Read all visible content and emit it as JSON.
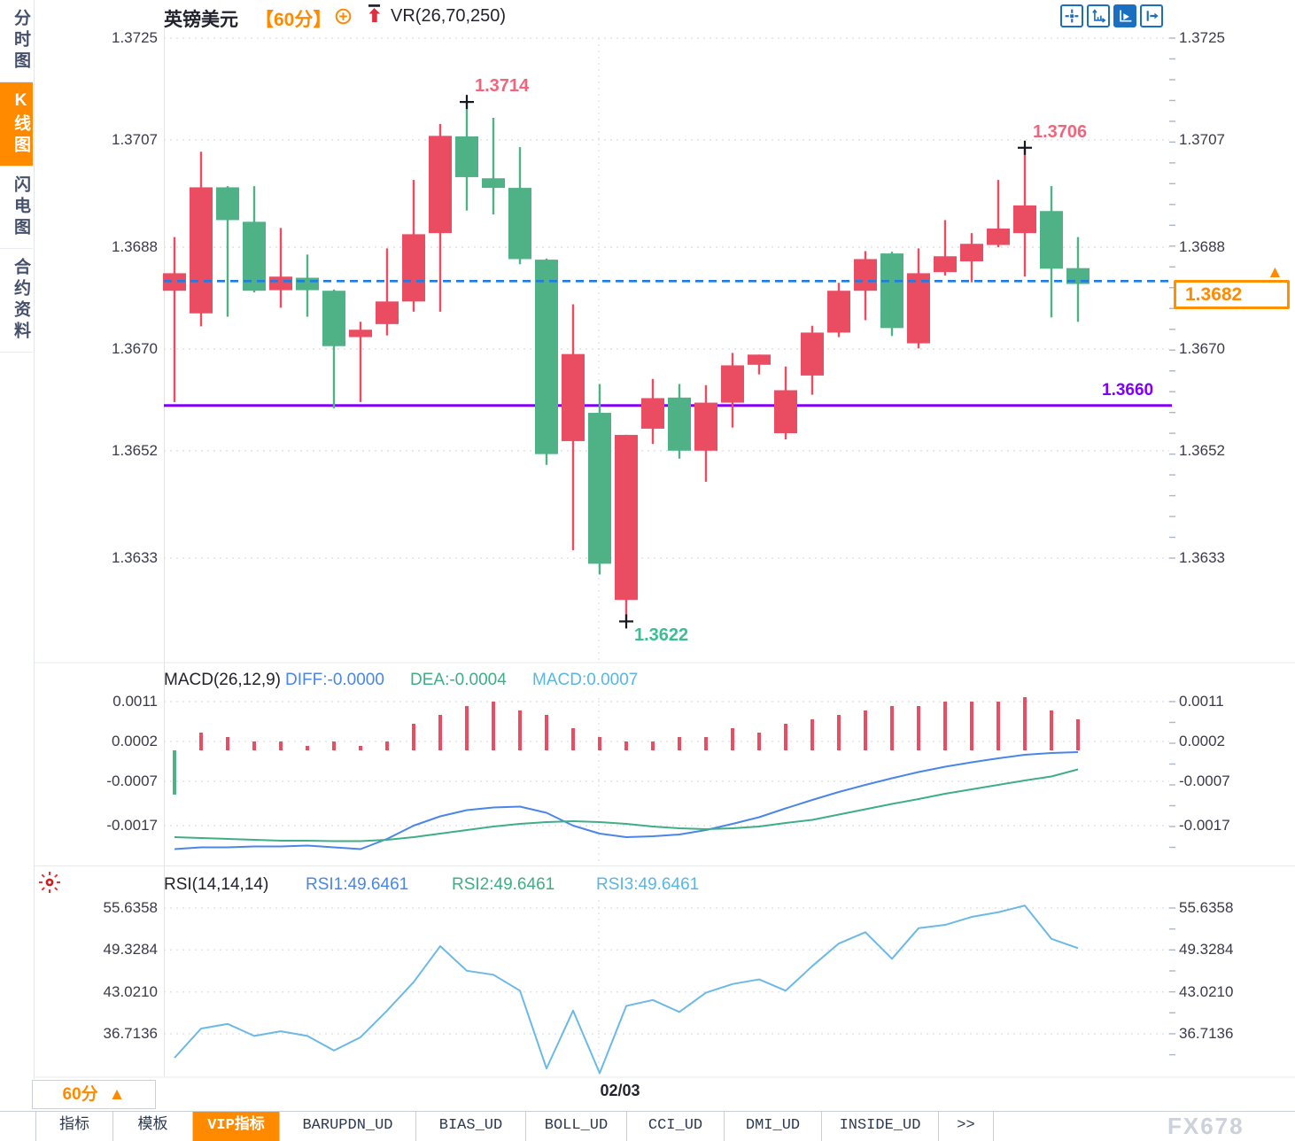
{
  "header": {
    "symbol": "英镑美元",
    "timeframe": "【60分】",
    "indicator": "VR(26,70,250)"
  },
  "sidebar": {
    "items": [
      {
        "id": "intraday-chart",
        "label": "分时图",
        "active": false
      },
      {
        "id": "kline-chart",
        "label": "K线图",
        "active": true
      },
      {
        "id": "lightning-chart",
        "label": "闪电图",
        "active": false
      },
      {
        "id": "contract-info",
        "label": "合约资料",
        "active": false
      }
    ]
  },
  "icons": {
    "toolbar": [
      {
        "id": "crosshair",
        "active": false
      },
      {
        "id": "axis-range",
        "active": false
      },
      {
        "id": "axis-play",
        "active": true
      },
      {
        "id": "pan-right",
        "active": false
      }
    ],
    "timeframe_add": "circle-plus",
    "header_trend": "red-up-arrow",
    "rsi_live": "red-sunburst"
  },
  "colors": {
    "up": "#ea4c62",
    "down": "#4fb286",
    "accent_orange": "#ff8a00",
    "dash_blue": "#1a7ee6",
    "purple": "#8000ff",
    "diff_blue": "#4a86e8",
    "dea_green": "#3fae85",
    "macd_cyan": "#58b6e4",
    "rsi_line": "#6cb9e6",
    "annotation_high": "#f2647c",
    "annotation_low": "#3cbd92"
  },
  "macd": {
    "title": "MACD(26,12,9)",
    "diff_label": "DIFF:-0.0000",
    "dea_label": "DEA:-0.0004",
    "macd_label": "MACD:0.0007"
  },
  "rsi": {
    "title": "RSI(14,14,14)",
    "rsi1_label": "RSI1:49.6461",
    "rsi2_label": "RSI2:49.6461",
    "rsi3_label": "RSI3:49.6461"
  },
  "xaxis": {
    "date_label": "02/03"
  },
  "price_tag": {
    "label": "1.3682",
    "arrow": "▲"
  },
  "footer": {
    "timeframe_button": {
      "label": "60分",
      "arrow": "▲"
    },
    "tabs": [
      {
        "id": "indicators",
        "label": "指标",
        "active": false
      },
      {
        "id": "templates",
        "label": "模板",
        "active": false
      },
      {
        "id": "vip-indicators",
        "label": "VIP指标",
        "active": true
      },
      {
        "id": "barupdn-ud",
        "label": "BARUPDN_UD",
        "active": false
      },
      {
        "id": "bias-ud",
        "label": "BIAS_UD",
        "active": false
      },
      {
        "id": "boll-ud",
        "label": "BOLL_UD",
        "active": false
      },
      {
        "id": "cci-ud",
        "label": "CCI_UD",
        "active": false
      },
      {
        "id": "dmi-ud",
        "label": "DMI_UD",
        "active": false
      },
      {
        "id": "inside-ud",
        "label": "INSIDE_UD",
        "active": false
      },
      {
        "id": "more",
        "label": ">>",
        "active": false
      }
    ],
    "watermark": "FX678"
  },
  "chart_data": [
    {
      "type": "candlestick",
      "title": "英镑美元 【60分】 VR(26,70,250)",
      "timeframe": "60分",
      "y_ticks": [
        "1.3725",
        "1.3707",
        "1.3688",
        "1.3670",
        "1.3652",
        "1.3633"
      ],
      "ylim": [
        1.3615,
        1.3727
      ],
      "x_tick_labels": [
        "02/03"
      ],
      "x_tick_index": 16,
      "grid": true,
      "candles": [
        [
          1.36803,
          1.36898,
          1.36606,
          1.36834
        ],
        [
          1.36763,
          1.37049,
          1.3674,
          1.36986
        ],
        [
          1.36986,
          1.36988,
          1.36757,
          1.36928
        ],
        [
          1.36925,
          1.36988,
          1.368,
          1.36803
        ],
        [
          1.36804,
          1.36914,
          1.36773,
          1.36828
        ],
        [
          1.36826,
          1.36867,
          1.36757,
          1.36804
        ],
        [
          1.36803,
          1.36805,
          1.36595,
          1.36705
        ],
        [
          1.36721,
          1.36748,
          1.36606,
          1.36734
        ],
        [
          1.36744,
          1.36878,
          1.36724,
          1.36784
        ],
        [
          1.36784,
          1.36999,
          1.36766,
          1.36903
        ],
        [
          1.36905,
          1.37098,
          1.36766,
          1.37077
        ],
        [
          1.37076,
          1.37137,
          1.36945,
          1.37004
        ],
        [
          1.37002,
          1.37109,
          1.36938,
          1.36985
        ],
        [
          1.36985,
          1.37057,
          1.3685,
          1.36859
        ],
        [
          1.36858,
          1.3686,
          1.36495,
          1.36514
        ],
        [
          1.36537,
          1.36779,
          1.36344,
          1.36691
        ],
        [
          1.36587,
          1.36638,
          1.36301,
          1.3632
        ],
        [
          1.36256,
          1.36548,
          1.36218,
          1.36548
        ],
        [
          1.36559,
          1.36647,
          1.36532,
          1.36613
        ],
        [
          1.36614,
          1.36638,
          1.36506,
          1.3652
        ],
        [
          1.3652,
          1.36636,
          1.36465,
          1.36605
        ],
        [
          1.36605,
          1.36693,
          1.36561,
          1.36671
        ],
        [
          1.36672,
          1.3669,
          1.36655,
          1.3669
        ],
        [
          1.36551,
          1.36669,
          1.3654,
          1.36627
        ],
        [
          1.36653,
          1.36741,
          1.36619,
          1.36729
        ],
        [
          1.36729,
          1.36817,
          1.36721,
          1.36803
        ],
        [
          1.36803,
          1.36873,
          1.36751,
          1.36859
        ],
        [
          1.36869,
          1.36872,
          1.36723,
          1.36737
        ],
        [
          1.3671,
          1.36878,
          1.36701,
          1.36834
        ],
        [
          1.36836,
          1.36928,
          1.3683,
          1.36864
        ],
        [
          1.36855,
          1.36905,
          1.36818,
          1.36886
        ],
        [
          1.36884,
          1.36999,
          1.3688,
          1.36913
        ],
        [
          1.36905,
          1.37056,
          1.36828,
          1.36954
        ],
        [
          1.36944,
          1.36988,
          1.36756,
          1.36842
        ],
        [
          1.36843,
          1.36898,
          1.36748,
          1.36815
        ]
      ],
      "annotations": [
        {
          "label": "1.3714",
          "index": 11,
          "pos": "high",
          "color": "#f2647c"
        },
        {
          "label": "1.3706",
          "index": 32,
          "pos": "high",
          "color": "#f2647c"
        },
        {
          "label": "1.3622",
          "index": 17,
          "pos": "low",
          "color": "#3cbd92"
        }
      ],
      "hlines": [
        {
          "value": 1.3682,
          "label": "1.3682",
          "style": "dashed",
          "color": "#1a7ee6",
          "tagged": true
        },
        {
          "value": 1.366,
          "label": "1.3660",
          "style": "solid",
          "color": "#8000ff",
          "tagged": false
        }
      ]
    },
    {
      "type": "bar",
      "name": "MACD",
      "title": "MACD(26,12,9)",
      "legend": [
        "DIFF:-0.0000",
        "DEA:-0.0004",
        "MACD:0.0007"
      ],
      "y_ticks": [
        "0.0011",
        "0.0002",
        "-0.0007",
        "-0.0017"
      ],
      "hist": [
        -0.001,
        0.0004,
        0.0003,
        0.0002,
        0.0002,
        0.0001,
        0.0002,
        0.0001,
        0.0002,
        0.0006,
        0.0008,
        0.001,
        0.0011,
        0.0009,
        0.0008,
        0.0005,
        0.0003,
        0.0002,
        0.0002,
        0.0003,
        0.0003,
        0.0005,
        0.0004,
        0.0006,
        0.0007,
        0.0008,
        0.0009,
        0.001,
        0.001,
        0.0011,
        0.0011,
        0.0011,
        0.0012,
        0.0009,
        0.0007
      ],
      "diff": [
        -0.00223,
        -0.00219,
        -0.00219,
        -0.00217,
        -0.00217,
        -0.00215,
        -0.00219,
        -0.00223,
        -0.002,
        -0.0017,
        -0.00149,
        -0.00135,
        -0.00129,
        -0.00127,
        -0.00141,
        -0.0017,
        -0.00188,
        -0.00196,
        -0.00194,
        -0.0019,
        -0.0018,
        -0.00166,
        -0.00151,
        -0.00131,
        -0.00112,
        -0.00094,
        -0.00078,
        -0.00063,
        -0.00049,
        -0.00037,
        -0.00027,
        -0.00018,
        -0.0001,
        -6e-05,
        -4e-05
      ],
      "dea": [
        -0.00196,
        -0.00198,
        -0.002,
        -0.00202,
        -0.00204,
        -0.00204,
        -0.00205,
        -0.00205,
        -0.00202,
        -0.00196,
        -0.00188,
        -0.0018,
        -0.00172,
        -0.00166,
        -0.00162,
        -0.0016,
        -0.00162,
        -0.00166,
        -0.00172,
        -0.00176,
        -0.00178,
        -0.00176,
        -0.00172,
        -0.00164,
        -0.00157,
        -0.00145,
        -0.00133,
        -0.00121,
        -0.0011,
        -0.00098,
        -0.00088,
        -0.00078,
        -0.00068,
        -0.00059,
        -0.00043
      ]
    },
    {
      "type": "line",
      "name": "RSI",
      "title": "RSI(14,14,14)",
      "legend": [
        "RSI1:49.6461",
        "RSI2:49.6461",
        "RSI3:49.6461"
      ],
      "y_ticks": [
        "55.6358",
        "49.3284",
        "43.0210",
        "36.7136"
      ],
      "values": [
        33.1,
        37.5,
        38.2,
        36.4,
        37.1,
        36.4,
        34.2,
        36.2,
        40.2,
        44.5,
        49.9,
        46.2,
        45.6,
        43.2,
        31.5,
        40.2,
        30.8,
        40.9,
        41.8,
        40.0,
        42.9,
        44.2,
        44.9,
        43.2,
        46.9,
        50.3,
        52.0,
        48.0,
        52.6,
        53.1,
        54.3,
        55.0,
        56.0,
        51.0,
        49.6
      ]
    }
  ]
}
